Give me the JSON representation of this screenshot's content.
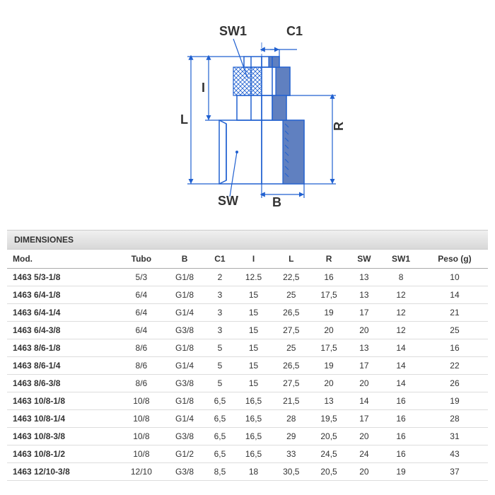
{
  "diagram": {
    "labels": {
      "sw1": "SW1",
      "c1": "C1",
      "i": "I",
      "l": "L",
      "r": "R",
      "sw": "SW",
      "b": "B"
    },
    "colors": {
      "line": "#2060d0",
      "fill": "#6080c0",
      "text": "#333333"
    }
  },
  "table": {
    "title": "DIMENSIONES",
    "columns": [
      "Mod.",
      "Tubo",
      "B",
      "C1",
      "I",
      "L",
      "R",
      "SW",
      "SW1",
      "Peso (g)"
    ],
    "rows": [
      [
        "1463 5/3-1/8",
        "5/3",
        "G1/8",
        "2",
        "12.5",
        "22,5",
        "16",
        "13",
        "8",
        "10"
      ],
      [
        "1463 6/4-1/8",
        "6/4",
        "G1/8",
        "3",
        "15",
        "25",
        "17,5",
        "13",
        "12",
        "14"
      ],
      [
        "1463 6/4-1/4",
        "6/4",
        "G1/4",
        "3",
        "15",
        "26,5",
        "19",
        "17",
        "12",
        "21"
      ],
      [
        "1463 6/4-3/8",
        "6/4",
        "G3/8",
        "3",
        "15",
        "27,5",
        "20",
        "20",
        "12",
        "25"
      ],
      [
        "1463 8/6-1/8",
        "8/6",
        "G1/8",
        "5",
        "15",
        "25",
        "17,5",
        "13",
        "14",
        "16"
      ],
      [
        "1463 8/6-1/4",
        "8/6",
        "G1/4",
        "5",
        "15",
        "26,5",
        "19",
        "17",
        "14",
        "22"
      ],
      [
        "1463 8/6-3/8",
        "8/6",
        "G3/8",
        "5",
        "15",
        "27,5",
        "20",
        "20",
        "14",
        "26"
      ],
      [
        "1463 10/8-1/8",
        "10/8",
        "G1/8",
        "6,5",
        "16,5",
        "21,5",
        "13",
        "14",
        "16",
        "19"
      ],
      [
        "1463 10/8-1/4",
        "10/8",
        "G1/4",
        "6,5",
        "16,5",
        "28",
        "19,5",
        "17",
        "16",
        "28"
      ],
      [
        "1463 10/8-3/8",
        "10/8",
        "G3/8",
        "6,5",
        "16,5",
        "29",
        "20,5",
        "20",
        "16",
        "31"
      ],
      [
        "1463 10/8-1/2",
        "10/8",
        "G1/2",
        "6,5",
        "16,5",
        "33",
        "24,5",
        "24",
        "16",
        "43"
      ],
      [
        "1463 12/10-3/8",
        "12/10",
        "G3/8",
        "8,5",
        "18",
        "30,5",
        "20,5",
        "20",
        "19",
        "37"
      ]
    ]
  }
}
